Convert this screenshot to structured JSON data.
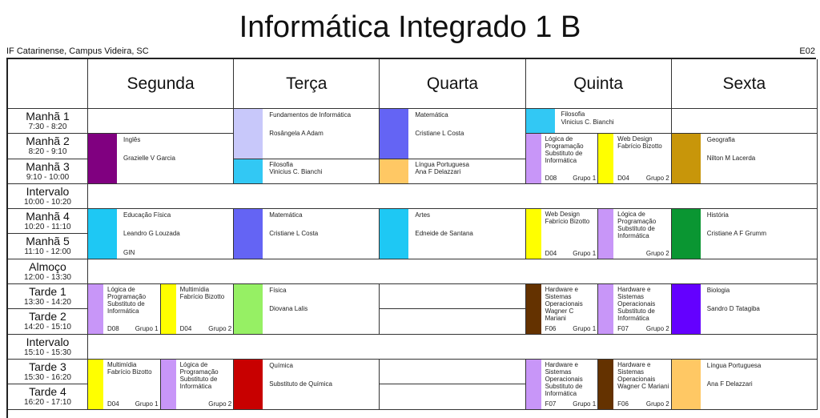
{
  "title": "Informática Integrado 1 B",
  "school": "IF Catarinense, Campus Videira, SC",
  "room_code": "E02",
  "days": [
    "Segunda",
    "Terça",
    "Quarta",
    "Quinta",
    "Sexta"
  ],
  "slots": [
    {
      "name": "Manhã 1",
      "time": "7:30 - 8:20"
    },
    {
      "name": "Manhã 2",
      "time": "8:20 - 9:10"
    },
    {
      "name": "Manhã 3",
      "time": "9:10 - 10:00"
    },
    {
      "name": "Intervalo",
      "time": "10:00 - 10:20",
      "break": true
    },
    {
      "name": "Manhã 4",
      "time": "10:20 - 11:10"
    },
    {
      "name": "Manhã 5",
      "time": "11:10 - 12:00"
    },
    {
      "name": "Almoço",
      "time": "12:00 - 13:30",
      "break": true
    },
    {
      "name": "Tarde 1",
      "time": "13:30 - 14:20"
    },
    {
      "name": "Tarde 2",
      "time": "14:20 - 15:10"
    },
    {
      "name": "Intervalo",
      "time": "15:10 - 15:30",
      "break": true
    },
    {
      "name": "Tarde 3",
      "time": "15:30 - 16:20"
    },
    {
      "name": "Tarde 4",
      "time": "16:20 - 17:10"
    }
  ],
  "classes": [
    {
      "day": 0,
      "slot": 0,
      "span": 1
    },
    {
      "day": 0,
      "slot": 1,
      "span": 2,
      "subject": "Inglês",
      "teacher": "Grazielle V Garcia",
      "color": "#800080"
    },
    {
      "day": 0,
      "slot": 4,
      "span": 2,
      "subject": "Educação Física",
      "teacher": "Leandro G Louzada",
      "room": "GIN",
      "color": "#1ec8f4"
    },
    {
      "day": 0,
      "slot": 7,
      "span": 2,
      "groups": [
        {
          "subject": "Lógica de Programação",
          "teacher": "Substituto de Informática",
          "room": "D08",
          "group": "Grupo 1",
          "color": "#c896f8"
        },
        {
          "subject": "Multimídia",
          "teacher": "Fabrício Bizotto",
          "room": "D04",
          "group": "Grupo 2",
          "color": "#ffff00"
        }
      ]
    },
    {
      "day": 0,
      "slot": 10,
      "span": 2,
      "groups": [
        {
          "subject": "Multimídia",
          "teacher": "Fabrício Bizotto",
          "room": "D04",
          "group": "Grupo 1",
          "color": "#ffff00"
        },
        {
          "subject": "Lógica de Programação",
          "teacher": "Substituto de Informática",
          "group": "Grupo 2",
          "color": "#c896f8"
        }
      ]
    },
    {
      "day": 1,
      "slot": 0,
      "span": 2,
      "subject": "Fundamentos de Informática",
      "teacher": "Rosângela A Adam",
      "color": "#c8c8fa"
    },
    {
      "day": 1,
      "slot": 2,
      "span": 1,
      "subject": "Filosofia",
      "teacher": "Vinicius C. Bianchi",
      "color": "#32c8f4"
    },
    {
      "day": 1,
      "slot": 4,
      "span": 2,
      "subject": "Matemática",
      "teacher": "Cristiane L Costa",
      "color": "#6464f4"
    },
    {
      "day": 1,
      "slot": 7,
      "span": 2,
      "subject": "Física",
      "teacher": "Diovana Lalis",
      "color": "#96f064"
    },
    {
      "day": 1,
      "slot": 10,
      "span": 2,
      "subject": "Química",
      "teacher": "Substituto de Química",
      "color": "#c80000"
    },
    {
      "day": 2,
      "slot": 0,
      "span": 2,
      "subject": "Matemática",
      "teacher": "Cristiane L Costa",
      "color": "#6464f4"
    },
    {
      "day": 2,
      "slot": 2,
      "span": 1,
      "subject": "Língua Portuguesa",
      "teacher": "Ana F Delazzari",
      "color": "#ffc864"
    },
    {
      "day": 2,
      "slot": 4,
      "span": 2,
      "subject": "Artes",
      "teacher": "Edneide de Santana",
      "color": "#1ec8f4"
    },
    {
      "day": 2,
      "slot": 7,
      "span": 1
    },
    {
      "day": 2,
      "slot": 8,
      "span": 1
    },
    {
      "day": 2,
      "slot": 10,
      "span": 1
    },
    {
      "day": 2,
      "slot": 11,
      "span": 1
    },
    {
      "day": 3,
      "slot": 0,
      "span": 1,
      "subject": "Filosofia",
      "teacher": "Vinicius C. Bianchi",
      "color": "#32c8f4"
    },
    {
      "day": 3,
      "slot": 1,
      "span": 2,
      "groups": [
        {
          "subject": "Lógica de Programação",
          "teacher": "Substituto de Informática",
          "room": "D08",
          "group": "Grupo 1",
          "color": "#c896f8"
        },
        {
          "subject": "Web Design",
          "teacher": "Fabrício Bizotto",
          "room": "D04",
          "group": "Grupo 2",
          "color": "#ffff00"
        }
      ]
    },
    {
      "day": 3,
      "slot": 4,
      "span": 2,
      "groups": [
        {
          "subject": "Web Design",
          "teacher": "Fabrício Bizotto",
          "room": "D04",
          "group": "Grupo 1",
          "color": "#ffff00"
        },
        {
          "subject": "Lógica de Programação",
          "teacher": "Substituto de Informática",
          "group": "Grupo 2",
          "color": "#c896f8"
        }
      ]
    },
    {
      "day": 3,
      "slot": 7,
      "span": 2,
      "groups": [
        {
          "subject": "Hardware e Sistemas Operacionais",
          "teacher": "Wagner C Mariani",
          "room": "F06",
          "group": "Grupo 1",
          "color": "#643200"
        },
        {
          "subject": "Hardware e Sistemas Operacionais",
          "teacher": "Substituto de Informática",
          "room": "F07",
          "group": "Grupo 2",
          "color": "#c896f8"
        }
      ]
    },
    {
      "day": 3,
      "slot": 10,
      "span": 2,
      "groups": [
        {
          "subject": "Hardware e Sistemas Operacionais",
          "teacher": "Substituto de Informática",
          "room": "F07",
          "group": "Grupo 1",
          "color": "#c896f8"
        },
        {
          "subject": "Hardware e Sistemas Operacionais",
          "teacher": "Wagner C Mariani",
          "room": "F06",
          "group": "Grupo 2",
          "color": "#643200"
        }
      ]
    },
    {
      "day": 4,
      "slot": 0,
      "span": 1
    },
    {
      "day": 4,
      "slot": 1,
      "span": 2,
      "subject": "Geografia",
      "teacher": "Nilton M Lacerda",
      "color": "#c8960a"
    },
    {
      "day": 4,
      "slot": 4,
      "span": 2,
      "subject": "História",
      "teacher": "Cristiane A F Grumm",
      "color": "#0a9632"
    },
    {
      "day": 4,
      "slot": 7,
      "span": 2,
      "subject": "Biologia",
      "teacher": "Sandro D Tatagiba",
      "color": "#6400ff"
    },
    {
      "day": 4,
      "slot": 10,
      "span": 2,
      "subject": "Língua Portuguesa",
      "teacher": "Ana F Delazzari",
      "color": "#ffc864"
    }
  ]
}
